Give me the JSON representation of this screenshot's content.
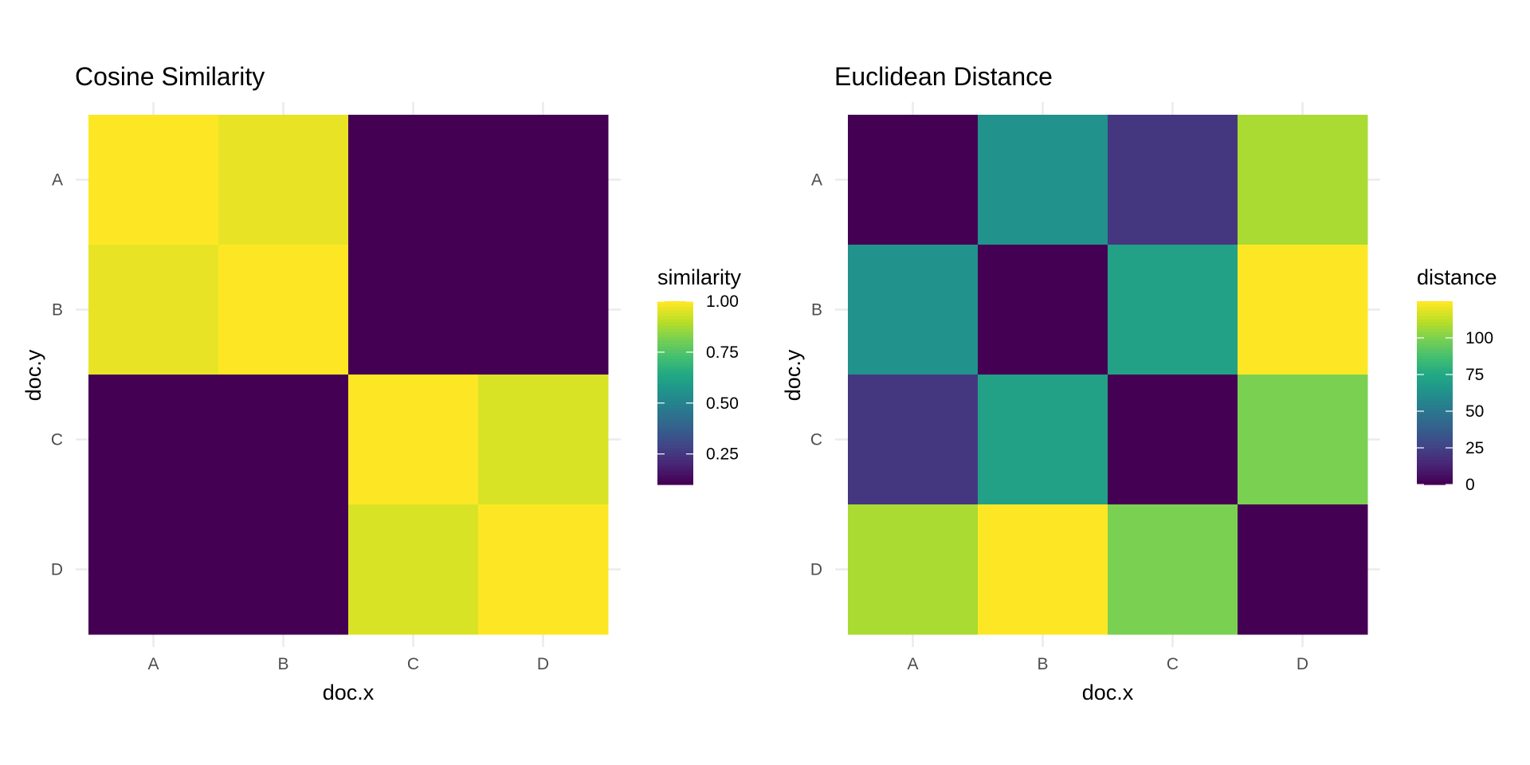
{
  "chart_data": [
    {
      "type": "heatmap",
      "title": "Cosine Similarity",
      "xlabel": "doc.x",
      "ylabel": "doc.y",
      "x_categories": [
        "A",
        "B",
        "C",
        "D"
      ],
      "y_categories": [
        "A",
        "B",
        "C",
        "D"
      ],
      "values": [
        [
          1.0,
          0.97,
          0.1,
          0.1
        ],
        [
          0.97,
          1.0,
          0.1,
          0.1
        ],
        [
          0.1,
          0.1,
          1.0,
          0.95
        ],
        [
          0.1,
          0.1,
          0.95,
          1.0
        ]
      ],
      "colormap": "viridis",
      "value_range": [
        0.1,
        1.0
      ],
      "legend": {
        "title": "similarity",
        "ticks": [
          0.25,
          0.5,
          0.75,
          1.0
        ],
        "tick_labels": [
          "0.25",
          "0.50",
          "0.75",
          "1.00"
        ],
        "placement": "right"
      },
      "grid": true
    },
    {
      "type": "heatmap",
      "title": "Euclidean Distance",
      "xlabel": "doc.x",
      "ylabel": "doc.y",
      "x_categories": [
        "A",
        "B",
        "C",
        "D"
      ],
      "y_categories": [
        "A",
        "B",
        "C",
        "D"
      ],
      "values": [
        [
          0,
          63,
          20,
          109
        ],
        [
          63,
          0,
          71,
          125
        ],
        [
          20,
          71,
          0,
          100
        ],
        [
          109,
          125,
          100,
          0
        ]
      ],
      "colormap": "viridis",
      "value_range": [
        0,
        125
      ],
      "legend": {
        "title": "distance",
        "ticks": [
          0,
          25,
          50,
          75,
          100
        ],
        "tick_labels": [
          "0",
          "25",
          "50",
          "75",
          "100"
        ],
        "placement": "right"
      },
      "grid": true
    }
  ]
}
